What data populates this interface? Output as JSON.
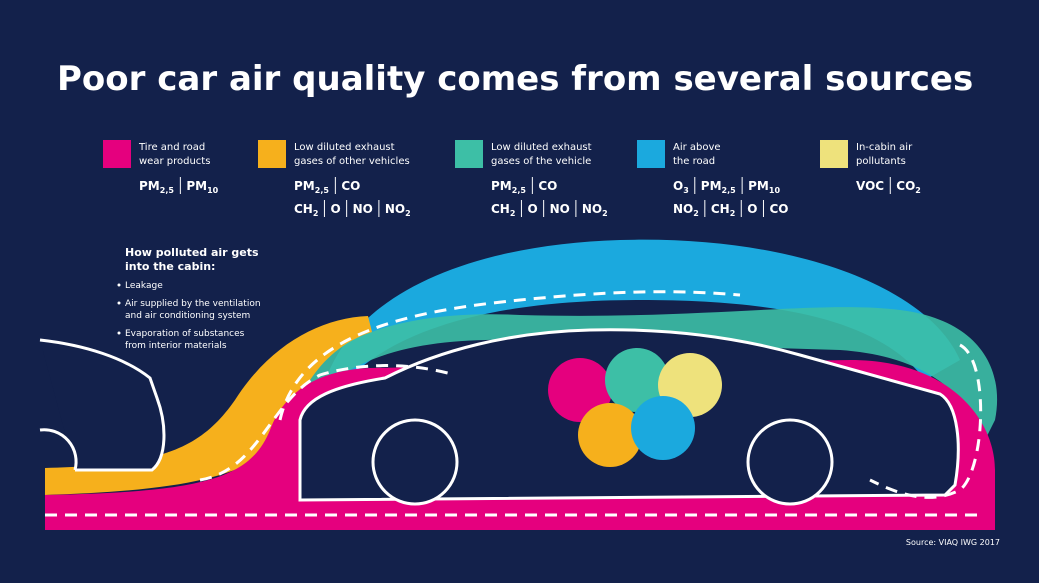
{
  "title": "Poor car air quality comes from several sources",
  "sources": [
    {
      "color": "#e5007e",
      "label": [
        "Tire and road",
        "wear products"
      ],
      "pollutants": [
        [
          {
            "base": "PM",
            "sub": "2,5"
          },
          {
            "base": "PM",
            "sub": "10"
          }
        ]
      ]
    },
    {
      "color": "#f6b01c",
      "label": [
        "Low diluted exhaust",
        "gases of other vehicles"
      ],
      "pollutants": [
        [
          {
            "base": "PM",
            "sub": "2,5"
          },
          {
            "base": "CO"
          }
        ],
        [
          {
            "base": "CH",
            "sub": "2"
          },
          {
            "base": "O"
          },
          {
            "base": "NO"
          },
          {
            "base": "NO",
            "sub": "2"
          }
        ]
      ]
    },
    {
      "color": "#3dbfa6",
      "label": [
        "Low diluted exhaust",
        "gases of the vehicle"
      ],
      "pollutants": [
        [
          {
            "base": "PM",
            "sub": "2,5"
          },
          {
            "base": "CO"
          }
        ],
        [
          {
            "base": "CH",
            "sub": "2"
          },
          {
            "base": "O"
          },
          {
            "base": "NO"
          },
          {
            "base": "NO",
            "sub": "2"
          }
        ]
      ]
    },
    {
      "color": "#1ba9de",
      "label": [
        "Air above",
        "the road"
      ],
      "pollutants": [
        [
          {
            "base": "O",
            "sub": "3"
          },
          {
            "base": "PM",
            "sub": "2,5"
          },
          {
            "base": "PM",
            "sub": "10"
          }
        ],
        [
          {
            "base": "NO",
            "sub": "2"
          },
          {
            "base": "CH",
            "sub": "2"
          },
          {
            "base": "O"
          },
          {
            "base": "CO"
          }
        ]
      ]
    },
    {
      "color": "#eee27c",
      "label": [
        "In-cabin air",
        "pollutants"
      ],
      "pollutants": [
        [
          {
            "base": "VOC"
          },
          {
            "base": "CO",
            "sub": "2"
          }
        ]
      ]
    }
  ],
  "cabin_info": {
    "heading": [
      "How polluted air gets",
      "into the cabin:"
    ],
    "bullets": [
      [
        "Leakage"
      ],
      [
        "Air supplied by the ventilation",
        "and air conditioning system"
      ],
      [
        "Evaporation of substances",
        "from interior materials"
      ]
    ]
  },
  "source_note": "Source: VIAQ IWG 2017"
}
